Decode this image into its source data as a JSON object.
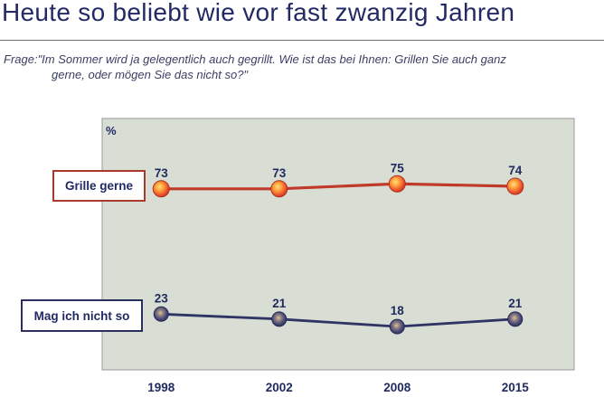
{
  "slide": {
    "title": "Heute so beliebt wie vor fast zwanzig Jahren",
    "question_lines": [
      "Frage:\"Im Sommer wird ja gelegentlich auch gegrillt. Wie ist das bei Ihnen: Grillen Sie auch ganz",
      "gerne, oder mögen Sie das nicht so?\""
    ]
  },
  "colors": {
    "title_navy": "#232a63",
    "question_text": "#3a3f63",
    "chart_background": "#d9ded4",
    "chart_border": "#989898",
    "red_line": "#c03a2b",
    "red_legend_border": "#a93b2e",
    "navy_line": "#2e3464",
    "navy_legend_border": "#2a2f5e",
    "value_label_navy": "#1f2a5e"
  },
  "chart_data": {
    "type": "line",
    "title": "",
    "unit_label": "%",
    "categories": [
      "1998",
      "2002",
      "2008",
      "2015"
    ],
    "series": [
      {
        "name": "Grille gerne",
        "values": [
          73,
          73,
          75,
          74
        ],
        "color": "#c03a2b",
        "marker": "orange-gradient-sphere"
      },
      {
        "name": "Mag ich nicht so",
        "values": [
          23,
          21,
          18,
          21
        ],
        "color": "#2e3464",
        "marker": "navy-gradient-sphere"
      }
    ],
    "ylim": [
      0,
      100
    ],
    "grid": false,
    "legend_position": "left-of-each-series-line",
    "value_labels": "above-points"
  }
}
